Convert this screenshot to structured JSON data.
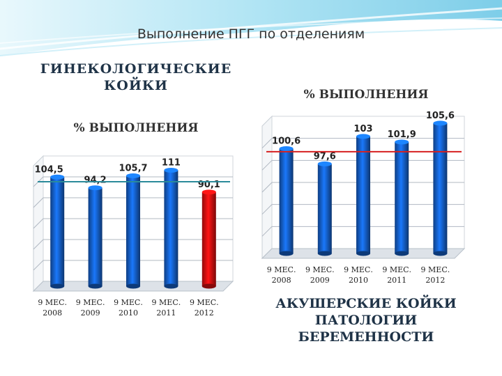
{
  "slide": {
    "title": "Выполнение ПГГ по отделениям",
    "left_caption_line1": "ГИНЕКОЛОГИЧЕСКИЕ",
    "left_caption_line2": "КОЙКИ",
    "right_caption_line1": "АКУШЕРСКИЕ КОЙКИ",
    "right_caption_line2": "ПАТОЛОГИИ",
    "right_caption_line3": "БЕРЕМЕННОСТИ"
  },
  "colors": {
    "bar_blue": "#1560c9",
    "bar_red": "#e01010",
    "ref_line_teal": "#2a8a9a",
    "ref_line_red": "#d62020",
    "banner": "#8fd6ee"
  },
  "chart_data": [
    {
      "type": "bar",
      "title": "% ВЫПОЛНЕНИЯ",
      "categories": [
        [
          "9 МЕС.",
          "2008"
        ],
        [
          "9 МЕС.",
          "2009"
        ],
        [
          "9 МЕС.",
          "2010"
        ],
        [
          "9 МЕС.",
          "2011"
        ],
        [
          "9 МЕС.",
          "2012"
        ]
      ],
      "values": [
        104.5,
        94.2,
        105.7,
        111,
        90.1
      ],
      "labels": [
        "104,5",
        "94,2",
        "105,7",
        "111",
        "90,1"
      ],
      "highlight_index": 4,
      "reference_line": 100,
      "ylim": [
        0,
        120
      ],
      "grid": true
    },
    {
      "type": "bar",
      "title": "% ВЫПОЛНЕНИЯ",
      "categories": [
        [
          "9 МЕС.",
          "2008"
        ],
        [
          "9 МЕС.",
          "2009"
        ],
        [
          "9 МЕС.",
          "2010"
        ],
        [
          "9 МЕС.",
          "2011"
        ],
        [
          "9 МЕС.",
          "2012"
        ]
      ],
      "values": [
        100.6,
        97.6,
        103,
        101.9,
        105.6
      ],
      "labels": [
        "100,6",
        "97,6",
        "103",
        "101,9",
        "105,6"
      ],
      "reference_line": 100,
      "ylim": [
        80,
        106
      ],
      "grid": true
    }
  ]
}
